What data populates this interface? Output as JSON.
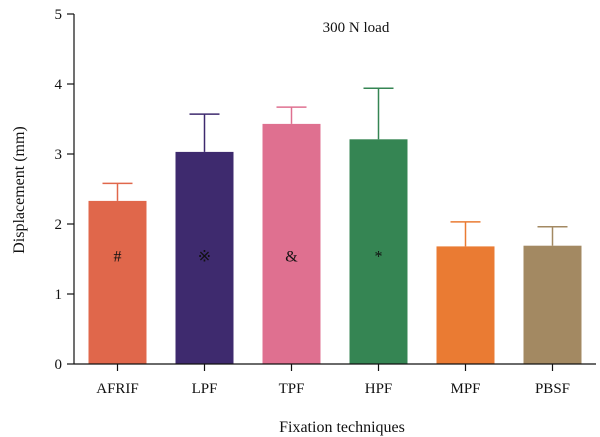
{
  "chart_data": {
    "type": "bar",
    "title": "300 N load",
    "xlabel": "Fixation techniques",
    "ylabel": "Displacement (mm)",
    "ylim": [
      0,
      5
    ],
    "yticks": [
      0,
      1,
      2,
      3,
      4,
      5
    ],
    "categories": [
      "AFRIF",
      "LPF",
      "TPF",
      "HPF",
      "MPF",
      "PBSF"
    ],
    "values": [
      2.33,
      3.03,
      3.43,
      3.21,
      1.68,
      1.69
    ],
    "errors": [
      0.25,
      0.54,
      0.24,
      0.73,
      0.35,
      0.27
    ],
    "markers": [
      "#",
      "※",
      "&",
      "*",
      "",
      ""
    ],
    "colors": [
      "#E0674B",
      "#3E2A6E",
      "#DF7090",
      "#358553",
      "#EA7B33",
      "#A38962"
    ],
    "grid": false,
    "legend": "none"
  }
}
